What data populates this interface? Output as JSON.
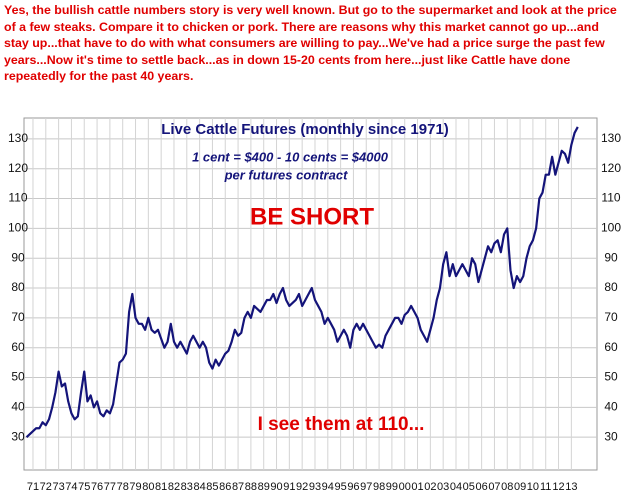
{
  "chart_data": {
    "type": "line",
    "commentary": "Yes, the bullish cattle numbers story is very well known. But go to the supermarket and look at the price of a few steaks. Compare it to chicken or pork. There are reasons why this market cannot go up...and stay up...that have to do with what consumers are willing to pay...We've had a price surge the past few years...Now it's time to settle back...as in down 15-20 cents from here...just like Cattle have done repeatedly for the past 40 years.",
    "title": "Live Cattle Futures (monthly since 1971)",
    "subtitle": [
      "1 cent = $400 - 10 cents = $4000",
      "per futures contract"
    ],
    "annotations": [
      "BE SHORT",
      "I see them at 110..."
    ],
    "color": "#14147a",
    "grid": true,
    "xlim": [
      1970.8,
      2015.5
    ],
    "ylim": [
      19,
      137
    ],
    "yticks": [
      30,
      40,
      50,
      60,
      70,
      80,
      90,
      100,
      110,
      120,
      130
    ],
    "xticks": [
      {
        "value": 1971.5,
        "label": "71"
      },
      {
        "value": 1972.5,
        "label": "72"
      },
      {
        "value": 1973.5,
        "label": "73"
      },
      {
        "value": 1974.5,
        "label": "74"
      },
      {
        "value": 1975.5,
        "label": "75"
      },
      {
        "value": 1976.5,
        "label": "76"
      },
      {
        "value": 1977.5,
        "label": "77"
      },
      {
        "value": 1978.5,
        "label": "78"
      },
      {
        "value": 1979.5,
        "label": "79"
      },
      {
        "value": 1980.5,
        "label": "80"
      },
      {
        "value": 1981.5,
        "label": "81"
      },
      {
        "value": 1982.5,
        "label": "82"
      },
      {
        "value": 1983.5,
        "label": "83"
      },
      {
        "value": 1984.5,
        "label": "84"
      },
      {
        "value": 1985.5,
        "label": "85"
      },
      {
        "value": 1986.5,
        "label": "86"
      },
      {
        "value": 1987.5,
        "label": "87"
      },
      {
        "value": 1988.5,
        "label": "88"
      },
      {
        "value": 1989.5,
        "label": "89"
      },
      {
        "value": 1990.5,
        "label": "90"
      },
      {
        "value": 1991.5,
        "label": "91"
      },
      {
        "value": 1992.5,
        "label": "92"
      },
      {
        "value": 1993.5,
        "label": "93"
      },
      {
        "value": 1994.5,
        "label": "94"
      },
      {
        "value": 1995.5,
        "label": "95"
      },
      {
        "value": 1996.5,
        "label": "96"
      },
      {
        "value": 1997.5,
        "label": "97"
      },
      {
        "value": 1998.5,
        "label": "98"
      },
      {
        "value": 1999.5,
        "label": "99"
      },
      {
        "value": 2000.5,
        "label": "00"
      },
      {
        "value": 2001.5,
        "label": "01"
      },
      {
        "value": 2002.5,
        "label": "02"
      },
      {
        "value": 2003.5,
        "label": "03"
      },
      {
        "value": 2004.5,
        "label": "04"
      },
      {
        "value": 2005.5,
        "label": "05"
      },
      {
        "value": 2006.5,
        "label": "06"
      },
      {
        "value": 2007.5,
        "label": "07"
      },
      {
        "value": 2008.5,
        "label": "08"
      },
      {
        "value": 2009.5,
        "label": "09"
      },
      {
        "value": 2010.5,
        "label": "10"
      },
      {
        "value": 2011.5,
        "label": "11"
      },
      {
        "value": 2012.5,
        "label": "12"
      },
      {
        "value": 2013.5,
        "label": "13"
      }
    ],
    "x": [
      1971,
      1971.25,
      1971.5,
      1971.75,
      1972,
      1972.25,
      1972.5,
      1972.75,
      1973,
      1973.25,
      1973.5,
      1973.75,
      1974,
      1974.25,
      1974.5,
      1974.75,
      1975,
      1975.25,
      1975.5,
      1975.75,
      1976,
      1976.25,
      1976.5,
      1976.75,
      1977,
      1977.25,
      1977.5,
      1977.75,
      1978,
      1978.25,
      1978.5,
      1978.75,
      1979,
      1979.25,
      1979.5,
      1979.75,
      1980,
      1980.25,
      1980.5,
      1980.75,
      1981,
      1981.25,
      1981.5,
      1981.75,
      1982,
      1982.25,
      1982.5,
      1982.75,
      1983,
      1983.25,
      1983.5,
      1983.75,
      1984,
      1984.25,
      1984.5,
      1984.75,
      1985,
      1985.25,
      1985.5,
      1985.75,
      1986,
      1986.25,
      1986.5,
      1986.75,
      1987,
      1987.25,
      1987.5,
      1987.75,
      1988,
      1988.25,
      1988.5,
      1988.75,
      1989,
      1989.25,
      1989.5,
      1989.75,
      1990,
      1990.25,
      1990.5,
      1990.75,
      1991,
      1991.25,
      1991.5,
      1991.75,
      1992,
      1992.25,
      1992.5,
      1992.75,
      1993,
      1993.25,
      1993.5,
      1993.75,
      1994,
      1994.25,
      1994.5,
      1994.75,
      1995,
      1995.25,
      1995.5,
      1995.75,
      1996,
      1996.25,
      1996.5,
      1996.75,
      1997,
      1997.25,
      1997.5,
      1997.75,
      1998,
      1998.25,
      1998.5,
      1998.75,
      1999,
      1999.25,
      1999.5,
      1999.75,
      2000,
      2000.25,
      2000.5,
      2000.75,
      2001,
      2001.25,
      2001.5,
      2001.75,
      2002,
      2002.25,
      2002.5,
      2002.75,
      2003,
      2003.25,
      2003.5,
      2003.75,
      2004,
      2004.25,
      2004.5,
      2004.75,
      2005,
      2005.25,
      2005.5,
      2005.75,
      2006,
      2006.25,
      2006.5,
      2006.75,
      2007,
      2007.25,
      2007.5,
      2007.75,
      2008,
      2008.25,
      2008.5,
      2008.75,
      2009,
      2009.25,
      2009.5,
      2009.75,
      2010,
      2010.25,
      2010.5,
      2010.75,
      2011,
      2011.25,
      2011.5,
      2011.75,
      2012,
      2012.25,
      2012.5,
      2012.75,
      2013,
      2013.25,
      2013.5,
      2013.75,
      2014
    ],
    "values": [
      30,
      31,
      32,
      33,
      33,
      35,
      34,
      36,
      40,
      45,
      52,
      47,
      48,
      42,
      38,
      36,
      37,
      45,
      52,
      42,
      44,
      40,
      42,
      38,
      37,
      39,
      38,
      41,
      48,
      55,
      56,
      58,
      72,
      78,
      70,
      68,
      68,
      66,
      70,
      66,
      65,
      66,
      63,
      60,
      62,
      68,
      62,
      60,
      62,
      60,
      58,
      62,
      64,
      62,
      60,
      62,
      60,
      55,
      53,
      56,
      54,
      56,
      58,
      59,
      62,
      66,
      64,
      65,
      70,
      72,
      70,
      74,
      73,
      72,
      74,
      76,
      76,
      78,
      75,
      78,
      80,
      76,
      74,
      75,
      76,
      78,
      74,
      76,
      78,
      80,
      76,
      74,
      72,
      68,
      70,
      68,
      66,
      62,
      64,
      66,
      64,
      60,
      66,
      68,
      66,
      68,
      66,
      64,
      62,
      60,
      61,
      60,
      64,
      66,
      68,
      70,
      70,
      68,
      71,
      72,
      74,
      72,
      70,
      66,
      64,
      62,
      66,
      70,
      76,
      80,
      88,
      92,
      84,
      88,
      84,
      86,
      88,
      86,
      84,
      90,
      88,
      82,
      86,
      90,
      94,
      92,
      95,
      96,
      92,
      98,
      100,
      86,
      80,
      84,
      82,
      84,
      90,
      94,
      96,
      100,
      110,
      112,
      118,
      118,
      124,
      118,
      122,
      126,
      125,
      122,
      128,
      132,
      134
    ]
  }
}
